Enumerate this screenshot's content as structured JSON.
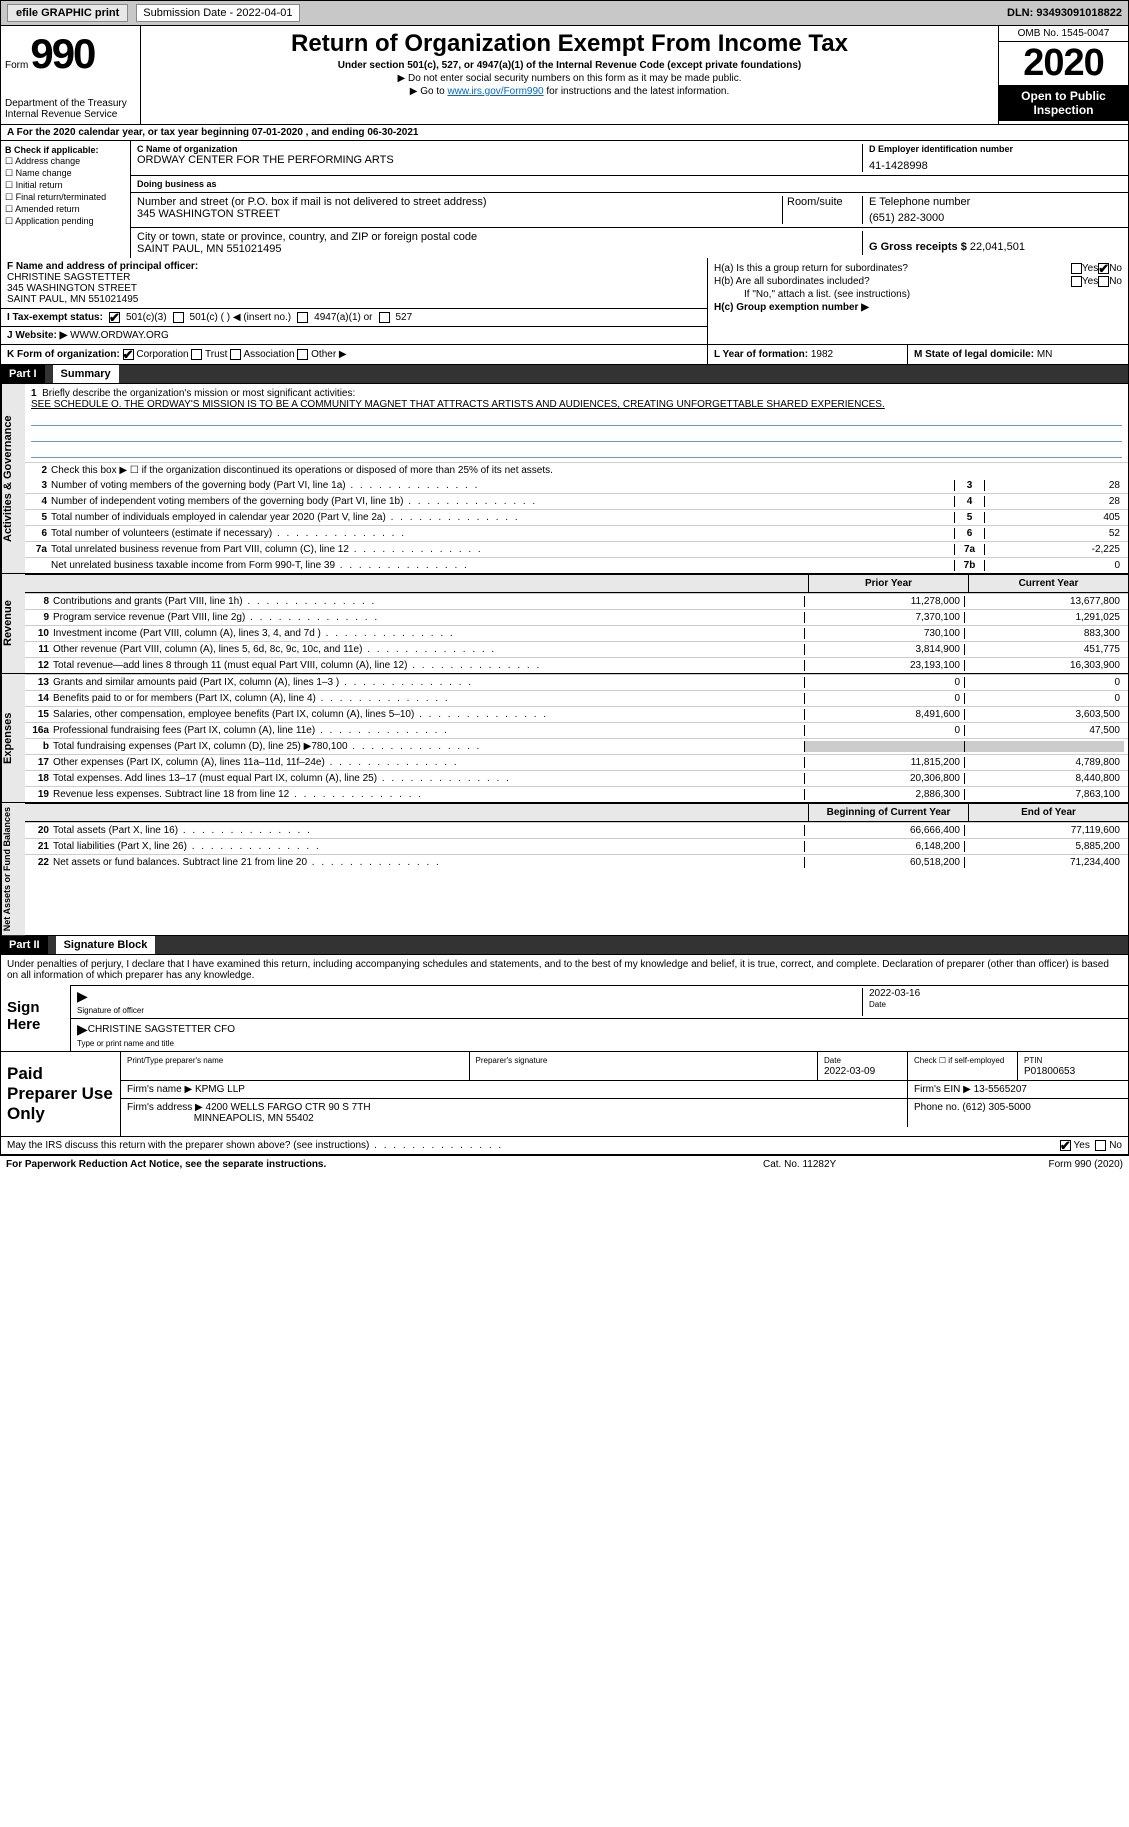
{
  "topbar": {
    "efile": "efile GRAPHIC print",
    "sub_label": "Submission Date - 2022-04-01",
    "dln": "DLN: 93493091018822"
  },
  "header": {
    "form_word": "Form",
    "form_num": "990",
    "dept": "Department of the Treasury\nInternal Revenue Service",
    "title": "Return of Organization Exempt From Income Tax",
    "subtitle": "Under section 501(c), 527, or 4947(a)(1) of the Internal Revenue Code (except private foundations)",
    "note1": "▶ Do not enter social security numbers on this form as it may be made public.",
    "note2_pre": "▶ Go to ",
    "note2_link": "www.irs.gov/Form990",
    "note2_post": " for instructions and the latest information.",
    "omb": "OMB No. 1545-0047",
    "year": "2020",
    "inspect": "Open to Public Inspection"
  },
  "rowA": "A For the 2020 calendar year, or tax year beginning 07-01-2020    , and ending 06-30-2021",
  "sectionB": {
    "label": "B Check if applicable:",
    "opts": [
      "Address change",
      "Name change",
      "Initial return",
      "Final return/terminated",
      "Amended return",
      "Application pending"
    ]
  },
  "sectionC": {
    "name_lbl": "C Name of organization",
    "name": "ORDWAY CENTER FOR THE PERFORMING ARTS",
    "dba_lbl": "Doing business as",
    "addr_lbl": "Number and street (or P.O. box if mail is not delivered to street address)",
    "addr": "345 WASHINGTON STREET",
    "room_lbl": "Room/suite",
    "city_lbl": "City or town, state or province, country, and ZIP or foreign postal code",
    "city": "SAINT PAUL, MN  551021495"
  },
  "sectionD": {
    "ein_lbl": "D Employer identification number",
    "ein": "41-1428998",
    "tel_lbl": "E Telephone number",
    "tel": "(651) 282-3000",
    "gross_lbl": "G Gross receipts $",
    "gross": "22,041,501"
  },
  "sectionF": {
    "lbl": "F Name and address of principal officer:",
    "name": "CHRISTINE SAGSTETTER",
    "addr1": "345 WASHINGTON STREET",
    "addr2": "SAINT PAUL, MN  551021495"
  },
  "sectionH": {
    "ha": "H(a)  Is this a group return for subordinates?",
    "hb": "H(b)  Are all subordinates included?",
    "hb_note": "If \"No,\" attach a list. (see instructions)",
    "hc": "H(c)  Group exemption number ▶",
    "yes": "Yes",
    "no": "No"
  },
  "sectionI": {
    "lbl": "I     Tax-exempt status:",
    "o1": "501(c)(3)",
    "o2": "501(c) (   ) ◀ (insert no.)",
    "o3": "4947(a)(1) or",
    "o4": "527"
  },
  "sectionJ": {
    "lbl": "J    Website: ▶",
    "val": "WWW.ORDWAY.ORG"
  },
  "sectionK": {
    "lbl": "K Form of organization:",
    "o1": "Corporation",
    "o2": "Trust",
    "o3": "Association",
    "o4": "Other ▶"
  },
  "sectionL": {
    "lbl": "L Year of formation:",
    "val": "1982"
  },
  "sectionM": {
    "lbl": "M State of legal domicile:",
    "val": "MN"
  },
  "part1": {
    "hdr": "Part I",
    "title": "Summary"
  },
  "summary": {
    "gov_label": "Activities & Governance",
    "rev_label": "Revenue",
    "exp_label": "Expenses",
    "net_label": "Net Assets or Fund Balances",
    "line1_pre": "Briefly describe the organization's mission or most significant activities:",
    "line1_txt": "SEE SCHEDULE O. THE ORDWAY'S MISSION IS TO BE A COMMUNITY MAGNET THAT ATTRACTS ARTISTS AND AUDIENCES, CREATING UNFORGETTABLE SHARED EXPERIENCES.",
    "line2": "Check this box ▶ ☐  if the organization discontinued its operations or disposed of more than 25% of its net assets.",
    "lines": [
      {
        "n": "3",
        "t": "Number of voting members of the governing body (Part VI, line 1a)",
        "b": "3",
        "v": "28"
      },
      {
        "n": "4",
        "t": "Number of independent voting members of the governing body (Part VI, line 1b)",
        "b": "4",
        "v": "28"
      },
      {
        "n": "5",
        "t": "Total number of individuals employed in calendar year 2020 (Part V, line 2a)",
        "b": "5",
        "v": "405"
      },
      {
        "n": "6",
        "t": "Total number of volunteers (estimate if necessary)",
        "b": "6",
        "v": "52"
      },
      {
        "n": "7a",
        "t": "Total unrelated business revenue from Part VIII, column (C), line 12",
        "b": "7a",
        "v": "-2,225"
      },
      {
        "n": "",
        "t": "Net unrelated business taxable income from Form 990-T, line 39",
        "b": "7b",
        "v": "0"
      }
    ],
    "col_hdr1": "Prior Year",
    "col_hdr2": "Current Year",
    "rev": [
      {
        "n": "8",
        "t": "Contributions and grants (Part VIII, line 1h)",
        "c1": "11,278,000",
        "c2": "13,677,800"
      },
      {
        "n": "9",
        "t": "Program service revenue (Part VIII, line 2g)",
        "c1": "7,370,100",
        "c2": "1,291,025"
      },
      {
        "n": "10",
        "t": "Investment income (Part VIII, column (A), lines 3, 4, and 7d )",
        "c1": "730,100",
        "c2": "883,300"
      },
      {
        "n": "11",
        "t": "Other revenue (Part VIII, column (A), lines 5, 6d, 8c, 9c, 10c, and 11e)",
        "c1": "3,814,900",
        "c2": "451,775"
      },
      {
        "n": "12",
        "t": "Total revenue—add lines 8 through 11 (must equal Part VIII, column (A), line 12)",
        "c1": "23,193,100",
        "c2": "16,303,900"
      }
    ],
    "exp": [
      {
        "n": "13",
        "t": "Grants and similar amounts paid (Part IX, column (A), lines 1–3 )",
        "c1": "0",
        "c2": "0"
      },
      {
        "n": "14",
        "t": "Benefits paid to or for members (Part IX, column (A), line 4)",
        "c1": "0",
        "c2": "0"
      },
      {
        "n": "15",
        "t": "Salaries, other compensation, employee benefits (Part IX, column (A), lines 5–10)",
        "c1": "8,491,600",
        "c2": "3,603,500"
      },
      {
        "n": "16a",
        "t": "Professional fundraising fees (Part IX, column (A), line 11e)",
        "c1": "0",
        "c2": "47,500"
      },
      {
        "n": "b",
        "t": "Total fundraising expenses (Part IX, column (D), line 25) ▶780,100",
        "c1": "",
        "c2": "",
        "shade": true
      },
      {
        "n": "17",
        "t": "Other expenses (Part IX, column (A), lines 11a–11d, 11f–24e)",
        "c1": "11,815,200",
        "c2": "4,789,800"
      },
      {
        "n": "18",
        "t": "Total expenses. Add lines 13–17 (must equal Part IX, column (A), line 25)",
        "c1": "20,306,800",
        "c2": "8,440,800"
      },
      {
        "n": "19",
        "t": "Revenue less expenses. Subtract line 18 from line 12",
        "c1": "2,886,300",
        "c2": "7,863,100"
      }
    ],
    "net_hdr1": "Beginning of Current Year",
    "net_hdr2": "End of Year",
    "net": [
      {
        "n": "20",
        "t": "Total assets (Part X, line 16)",
        "c1": "66,666,400",
        "c2": "77,119,600"
      },
      {
        "n": "21",
        "t": "Total liabilities (Part X, line 26)",
        "c1": "6,148,200",
        "c2": "5,885,200"
      },
      {
        "n": "22",
        "t": "Net assets or fund balances. Subtract line 21 from line 20",
        "c1": "60,518,200",
        "c2": "71,234,400"
      }
    ]
  },
  "part2": {
    "hdr": "Part II",
    "title": "Signature Block"
  },
  "sig": {
    "decl": "Under penalties of perjury, I declare that I have examined this return, including accompanying schedules and statements, and to the best of my knowledge and belief, it is true, correct, and complete. Declaration of preparer (other than officer) is based on all information of which preparer has any knowledge.",
    "sign_here": "Sign Here",
    "sig_lbl": "Signature of officer",
    "date_lbl": "Date",
    "date": "2022-03-16",
    "name": "CHRISTINE SAGSTETTER CFO",
    "name_lbl": "Type or print name and title"
  },
  "prep": {
    "lbl": "Paid Preparer Use Only",
    "h1": "Print/Type preparer's name",
    "h2": "Preparer's signature",
    "h3": "Date",
    "h3v": "2022-03-09",
    "h4": "Check ☐ if self-employed",
    "h5": "PTIN",
    "h5v": "P01800653",
    "firm_lbl": "Firm's name    ▶",
    "firm": "KPMG LLP",
    "ein_lbl": "Firm's EIN ▶",
    "ein": "13-5565207",
    "addr_lbl": "Firm's address ▶",
    "addr1": "4200 WELLS FARGO CTR 90 S 7TH",
    "addr2": "MINNEAPOLIS, MN  55402",
    "phone_lbl": "Phone no.",
    "phone": "(612) 305-5000"
  },
  "discuss": {
    "txt": "May the IRS discuss this return with the preparer shown above? (see instructions)",
    "yes": "Yes",
    "no": "No"
  },
  "footer": {
    "l": "For Paperwork Reduction Act Notice, see the separate instructions.",
    "m": "Cat. No. 11282Y",
    "r": "Form 990 (2020)"
  },
  "colors": {
    "topbar_bg": "#c8c8c8",
    "link": "#0066cc",
    "underline": "#6699cc"
  }
}
